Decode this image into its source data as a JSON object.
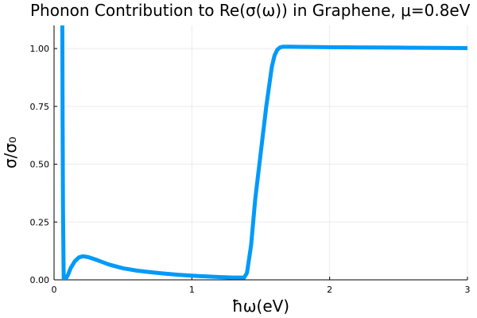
{
  "chart_data": {
    "type": "line",
    "title": "Phonon Contribution to Re(σ(ω)) in Graphene, μ=0.8eV",
    "xlabel": "ħω(eV)",
    "ylabel": "σ/σ₀",
    "xlim": [
      0,
      3
    ],
    "ylim": [
      0,
      1.1
    ],
    "xticks": [
      0,
      1,
      2,
      3
    ],
    "xtick_labels": [
      "0",
      "1",
      "2",
      "3"
    ],
    "yticks": [
      0,
      0.25,
      0.5,
      0.75,
      1.0
    ],
    "ytick_labels": [
      "0.00",
      "0.25",
      "0.50",
      "0.75",
      "1.00"
    ],
    "grid": true,
    "legend": "none",
    "series": [
      {
        "color": "#009af9",
        "x": [
          0.06,
          0.062,
          0.065,
          0.07,
          0.075,
          0.085,
          0.1,
          0.12,
          0.15,
          0.18,
          0.21,
          0.25,
          0.3,
          0.4,
          0.5,
          0.6,
          0.7,
          0.8,
          0.9,
          1.0,
          1.1,
          1.2,
          1.3,
          1.38,
          1.4,
          1.43,
          1.46,
          1.5,
          1.54,
          1.58,
          1.6,
          1.62,
          1.64,
          1.66,
          1.7,
          1.8,
          2.0,
          2.2,
          2.5,
          2.8,
          3.0
        ],
        "y": [
          1.1,
          0.7,
          0.3,
          0.0,
          0.0,
          0.005,
          0.02,
          0.05,
          0.08,
          0.097,
          0.102,
          0.098,
          0.088,
          0.066,
          0.05,
          0.04,
          0.033,
          0.027,
          0.022,
          0.018,
          0.015,
          0.012,
          0.01,
          0.01,
          0.03,
          0.15,
          0.35,
          0.55,
          0.75,
          0.92,
          0.97,
          0.995,
          1.005,
          1.008,
          1.008,
          1.007,
          1.006,
          1.005,
          1.004,
          1.003,
          1.002
        ]
      }
    ]
  }
}
